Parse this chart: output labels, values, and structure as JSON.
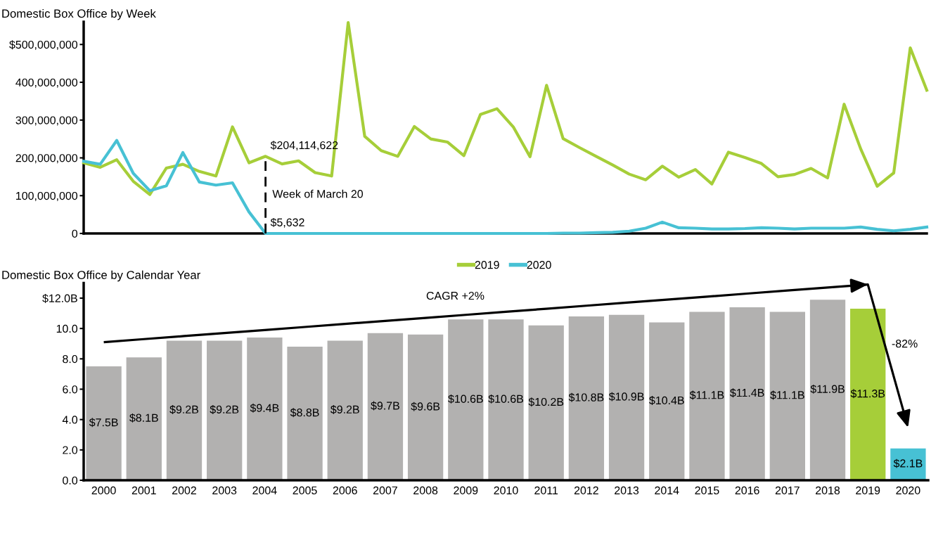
{
  "chart_data": [
    {
      "type": "line",
      "title": "Domestic Box Office by Week",
      "categories": [
        null,
        null,
        null,
        null,
        null,
        null,
        null,
        null,
        null,
        null,
        null,
        null,
        null,
        null,
        null,
        null,
        null,
        null,
        null,
        null,
        null,
        null,
        null,
        null,
        null,
        null,
        null,
        null,
        null,
        null,
        null,
        null,
        null,
        null,
        null,
        null,
        null,
        null,
        null,
        null,
        null,
        null,
        null,
        null,
        null,
        null,
        null,
        null,
        null,
        null,
        null,
        null
      ],
      "series": [
        {
          "name": "2019",
          "color": "#a6ce39",
          "values": [
            187000000,
            175000000,
            195000000,
            138000000,
            103000000,
            173000000,
            183000000,
            164000000,
            152000000,
            282000000,
            187000000,
            204114622,
            184000000,
            192000000,
            161000000,
            152000000,
            558000000,
            257000000,
            219000000,
            204000000,
            283000000,
            250000000,
            242000000,
            206000000,
            315000000,
            330000000,
            281000000,
            203000000,
            392000000,
            251000000,
            227000000,
            204000000,
            181000000,
            157000000,
            142000000,
            178000000,
            149000000,
            169000000,
            131000000,
            215000000,
            201000000,
            185000000,
            150000000,
            156000000,
            172000000,
            147000000,
            342000000,
            224000000,
            125000000,
            160000000,
            491000000,
            379000000
          ],
          "value_labels": [
            null,
            null,
            null,
            null,
            null,
            null,
            null,
            null,
            null,
            null,
            null,
            "$204,114,622",
            null,
            null,
            null,
            null,
            null,
            null,
            null,
            null,
            null,
            null,
            null,
            null,
            null,
            null,
            null,
            null,
            null,
            null,
            null,
            null,
            null,
            null,
            null,
            null,
            null,
            null,
            null,
            null,
            null,
            null,
            null,
            null,
            null,
            null,
            null,
            null,
            null,
            null,
            null,
            null
          ]
        },
        {
          "name": "2020",
          "color": "#47c1d4",
          "values": [
            191000000,
            183000000,
            246000000,
            159000000,
            113000000,
            126000000,
            214000000,
            136000000,
            128000000,
            134000000,
            57000000,
            5632,
            0,
            0,
            0,
            0,
            0,
            0,
            0,
            0,
            0,
            0,
            0,
            0,
            0,
            0,
            0,
            0,
            0,
            1000000,
            1000000,
            2000000,
            3000000,
            6000000,
            14000000,
            30000000,
            15000000,
            14000000,
            12000000,
            12000000,
            13000000,
            15000000,
            14000000,
            12000000,
            14000000,
            14000000,
            14000000,
            17000000,
            11000000,
            7000000,
            11000000,
            17000000
          ],
          "value_labels": [
            null,
            null,
            null,
            null,
            null,
            null,
            null,
            null,
            null,
            null,
            null,
            "$5,632",
            null,
            null,
            null,
            null,
            null,
            null,
            null,
            null,
            null,
            null,
            null,
            null,
            null,
            null,
            null,
            null,
            null,
            null,
            null,
            null,
            null,
            null,
            null,
            null,
            null,
            null,
            null,
            null,
            null,
            null,
            null,
            null,
            null,
            null,
            null,
            null,
            null,
            null,
            null,
            null
          ]
        }
      ],
      "ylim": [
        0,
        560000000
      ],
      "yticks": [
        0,
        {
          "value": 100000000,
          "label": "100,000,000"
        },
        {
          "value": 200000000,
          "label": "200,000,000"
        },
        {
          "value": 300000000,
          "label": "300,000,000"
        },
        {
          "value": 400000000,
          "label": "400,000,000"
        },
        {
          "value": 500000000,
          "label": "$500,000,000"
        }
      ],
      "tick_labels": "y",
      "legend": "bottom",
      "annotations": [
        "Week of March 20"
      ]
    },
    {
      "type": "bar",
      "title": "Domestic Box Office by Calendar Year",
      "categories": [
        "2000",
        "2001",
        "2002",
        "2003",
        "2004",
        "2005",
        "2006",
        "2007",
        "2008",
        "2009",
        "2010",
        "2011",
        "2012",
        "2013",
        "2014",
        "2015",
        "2016",
        "2017",
        "2018",
        "2019",
        "2020"
      ],
      "values": [
        7.5,
        8.1,
        9.2,
        9.2,
        9.4,
        8.8,
        9.2,
        9.7,
        9.6,
        10.6,
        10.6,
        10.2,
        10.8,
        10.9,
        10.4,
        11.1,
        11.4,
        11.1,
        11.9,
        11.3,
        2.1
      ],
      "colors": [
        "#b2b1b0",
        "#b2b1b0",
        "#b2b1b0",
        "#b2b1b0",
        "#b2b1b0",
        "#b2b1b0",
        "#b2b1b0",
        "#b2b1b0",
        "#b2b1b0",
        "#b2b1b0",
        "#b2b1b0",
        "#b2b1b0",
        "#b2b1b0",
        "#b2b1b0",
        "#b2b1b0",
        "#b2b1b0",
        "#b2b1b0",
        "#b2b1b0",
        "#b2b1b0",
        "#a6ce39",
        "#47c1d4"
      ],
      "value_labels": [
        "$7.5B",
        "$8.1B",
        "$9.2B",
        "$9.2B",
        "$9.4B",
        "$8.8B",
        "$9.2B",
        "$9.7B",
        "$9.6B",
        "$10.6B",
        "$10.6B",
        "$10.2B",
        "$10.8B",
        "$10.9B",
        "$10.4B",
        "$11.1B",
        "$11.4B",
        "$11.1B",
        "$11.9B",
        "$11.3B",
        "$2.1B"
      ],
      "series": [
        {
          "type": "line",
          "values": [
            9.1,
            9.3,
            9.5,
            9.7,
            9.9,
            10.1,
            10.3,
            10.5,
            10.7,
            10.9,
            11.1,
            11.3,
            11.5,
            11.7,
            11.9,
            12.1,
            12.3,
            12.5,
            12.7,
            12.9,
            null
          ],
          "color": "#000000"
        }
      ],
      "ylim": [
        0,
        13
      ],
      "yticks": [
        {
          "value": 0,
          "label": "0.0"
        },
        {
          "value": 2,
          "label": "2.0"
        },
        {
          "value": 4,
          "label": "4.0"
        },
        {
          "value": 6,
          "label": "6.0"
        },
        {
          "value": 8,
          "label": "8.0"
        },
        {
          "value": 10,
          "label": "10.0"
        },
        {
          "value": 12,
          "label": "$12.0B"
        }
      ],
      "annotations": [
        "CAGR +2%",
        "-82%"
      ]
    }
  ]
}
